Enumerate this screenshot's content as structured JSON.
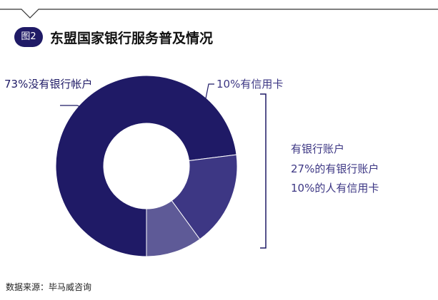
{
  "header": {
    "badge": "图2",
    "title": "东盟国家银行服务普及情况"
  },
  "chart_data": {
    "type": "pie",
    "title": "东盟国家银行服务普及情况",
    "slices": [
      {
        "label": "73%没有银行帐户",
        "value": 73,
        "color": "#1f1a66"
      },
      {
        "label": "",
        "value": 17,
        "color": "#3d3784"
      },
      {
        "label": "10%有信用卡",
        "value": 10,
        "color": "#5e5a97"
      }
    ],
    "brace_notes": [
      "有银行账户",
      "27%的有银行账户",
      "10%的人有信用卡"
    ]
  },
  "footer": {
    "source": "数据来源：毕马威咨询"
  }
}
